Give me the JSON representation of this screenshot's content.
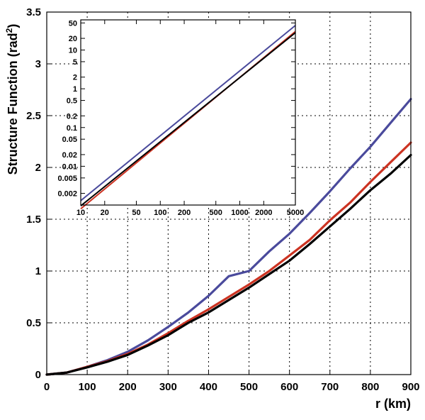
{
  "chart_data": [
    {
      "id": "main",
      "type": "line",
      "title": "",
      "xlabel": "r (km)",
      "ylabel": "Structure Function (rad²)",
      "ylabel_base": "Structure Function (rad",
      "ylabel_sup": "2",
      "ylabel_tail": ")",
      "xlim": [
        0,
        900
      ],
      "ylim": [
        0,
        3.5
      ],
      "grid": true,
      "xticks": [
        0,
        100,
        200,
        300,
        400,
        500,
        600,
        700,
        800,
        900
      ],
      "xtick_labels": [
        "0",
        "100",
        "200",
        "300",
        "400",
        "500",
        "600",
        "700",
        "800",
        "900"
      ],
      "yticks": [
        0,
        0.5,
        1,
        1.5,
        2,
        2.5,
        3,
        3.5
      ],
      "ytick_labels": [
        "0",
        "0.5",
        "1",
        "1.5",
        "2",
        "2.5",
        "3",
        "3.5"
      ],
      "x": [
        0,
        50,
        100,
        150,
        200,
        250,
        300,
        350,
        400,
        450,
        500,
        550,
        600,
        650,
        700,
        750,
        800,
        850,
        900
      ],
      "series": [
        {
          "name": "blue",
          "color": "#4a4a9c",
          "values": [
            0,
            0.02,
            0.075,
            0.14,
            0.22,
            0.33,
            0.46,
            0.6,
            0.76,
            0.95,
            1.0,
            1.19,
            1.36,
            1.56,
            1.77,
            1.99,
            2.2,
            2.43,
            2.66
          ]
        },
        {
          "name": "red",
          "color": "#cc3322",
          "values": [
            0,
            0.02,
            0.075,
            0.13,
            0.2,
            0.29,
            0.4,
            0.52,
            0.63,
            0.75,
            0.87,
            1.0,
            1.15,
            1.3,
            1.49,
            1.66,
            1.86,
            2.05,
            2.24
          ]
        },
        {
          "name": "black",
          "color": "#000000",
          "values": [
            0,
            0.02,
            0.07,
            0.125,
            0.19,
            0.28,
            0.38,
            0.5,
            0.6,
            0.72,
            0.84,
            0.97,
            1.1,
            1.26,
            1.43,
            1.6,
            1.78,
            1.94,
            2.12
          ]
        }
      ]
    },
    {
      "id": "inset",
      "type": "line",
      "title": "",
      "xscale": "log",
      "yscale": "log",
      "xlim": [
        10,
        5000
      ],
      "ylim": [
        0.001,
        60
      ],
      "grid": false,
      "xticks": [
        10,
        20,
        50,
        100,
        200,
        500,
        1000,
        2000,
        5000
      ],
      "xtick_labels": [
        "10",
        "20",
        "50",
        "100",
        "200",
        "500",
        "1000",
        "2000",
        "5000"
      ],
      "yticks": [
        0.002,
        0.005,
        0.01,
        0.02,
        0.05,
        0.1,
        0.2,
        0.5,
        1,
        2,
        5,
        10,
        20,
        50
      ],
      "ytick_labels": [
        "0.002",
        "0.005",
        "0.01",
        "0.02",
        "0.05",
        "0.1",
        "0.2",
        "0.5",
        "1",
        "2",
        "5",
        "10",
        "20",
        "50"
      ],
      "series": [
        {
          "name": "blue",
          "color": "#4a4a9c",
          "x": [
            10,
            5000
          ],
          "values": [
            0.0013,
            43
          ]
        },
        {
          "name": "red",
          "color": "#cc3322",
          "x": [
            10,
            5000
          ],
          "values": [
            0.0008,
            30
          ]
        },
        {
          "name": "black",
          "color": "#000000",
          "x": [
            10,
            5000
          ],
          "values": [
            0.00095,
            28
          ]
        }
      ]
    }
  ]
}
